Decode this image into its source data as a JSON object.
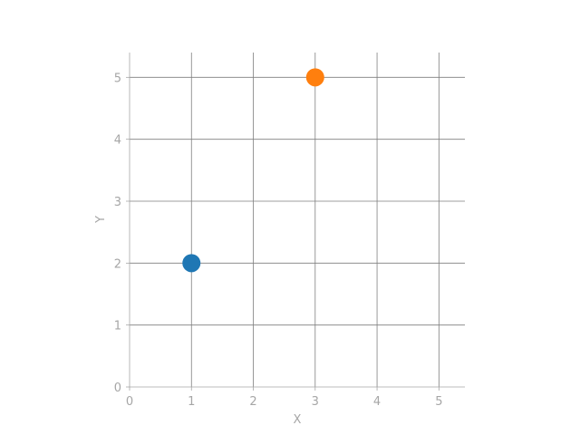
{
  "chart_data": {
    "type": "scatter",
    "title": "",
    "xlabel": "X",
    "ylabel": "Y",
    "xlim": [
      0,
      5.42
    ],
    "ylim": [
      0,
      5.4
    ],
    "xticks": [
      0,
      1,
      2,
      3,
      4,
      5
    ],
    "yticks": [
      0,
      1,
      2,
      3,
      4,
      5
    ],
    "grid": true,
    "series": [
      {
        "color": "#1f77b4",
        "points": [
          {
            "x": 1,
            "y": 2
          }
        ]
      },
      {
        "color": "#ff7f0e",
        "points": [
          {
            "x": 3,
            "y": 5
          }
        ]
      }
    ]
  }
}
